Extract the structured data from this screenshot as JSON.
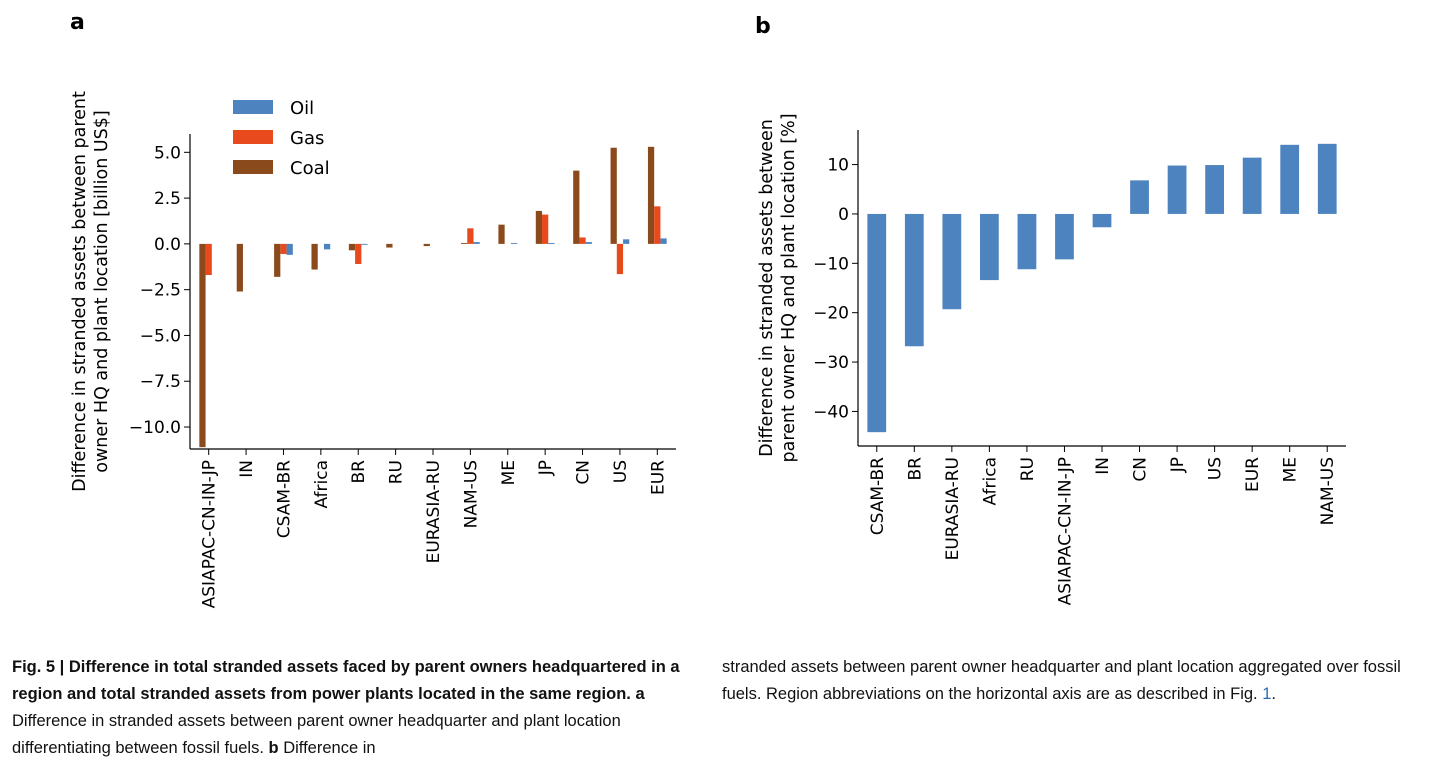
{
  "panels": {
    "a_letter": "a",
    "b_letter": "b"
  },
  "chart_data": [
    {
      "type": "bar",
      "panel": "a",
      "ylabel_line1": "Difference in stranded assets between parent",
      "ylabel_line2": "owner HQ and plant location [billion US$]",
      "ylim": [
        -11.2,
        6.0
      ],
      "yticks": [
        5.0,
        2.5,
        0.0,
        -2.5,
        -5.0,
        -7.5,
        -10.0
      ],
      "ytick_labels": [
        "5.0",
        "2.5",
        "0.0",
        "−2.5",
        "−5.0",
        "−7.5",
        "−10.0"
      ],
      "categories": [
        "ASIAPAC-CN-IN-JP",
        "IN",
        "CSAM-BR",
        "Africa",
        "BR",
        "RU",
        "EURASIA-RU",
        "NAM-US",
        "ME",
        "JP",
        "CN",
        "US",
        "EUR"
      ],
      "series": [
        {
          "name": "Coal",
          "color": "#8b4a1c",
          "values": [
            -11.1,
            -2.6,
            -1.8,
            -1.4,
            -0.35,
            -0.2,
            -0.12,
            0.05,
            1.05,
            1.8,
            4.0,
            5.25,
            5.3
          ]
        },
        {
          "name": "Gas",
          "color": "#e8491d",
          "values": [
            -1.7,
            0.0,
            -0.55,
            0.0,
            -1.1,
            0.0,
            0.0,
            0.85,
            0.0,
            1.6,
            0.35,
            -1.65,
            2.05
          ]
        },
        {
          "name": "Oil",
          "color": "#4d84c0",
          "values": [
            0.0,
            0.0,
            -0.6,
            -0.3,
            -0.05,
            0.0,
            0.0,
            0.1,
            0.05,
            0.05,
            0.1,
            0.25,
            0.3
          ]
        }
      ],
      "legend": [
        {
          "name": "Oil",
          "color": "#4d84c0"
        },
        {
          "name": "Gas",
          "color": "#e8491d"
        },
        {
          "name": "Coal",
          "color": "#8b4a1c"
        }
      ],
      "legend_placement": "top-left",
      "grid": false
    },
    {
      "type": "bar",
      "panel": "b",
      "ylabel_line1": "Difference in stranded assets between",
      "ylabel_line2": "parent owner HQ and plant location [%]",
      "ylim": [
        -47,
        17
      ],
      "yticks": [
        10,
        0,
        -10,
        -20,
        -30,
        -40
      ],
      "ytick_labels": [
        "10",
        "0",
        "−10",
        "−20",
        "−30",
        "−40"
      ],
      "categories": [
        "CSAM-BR",
        "BR",
        "EURASIA-RU",
        "Africa",
        "RU",
        "ASIAPAC-CN-IN-JP",
        "IN",
        "CN",
        "JP",
        "US",
        "EUR",
        "ME",
        "NAM-US"
      ],
      "values": [
        -44.2,
        -26.8,
        -19.3,
        -13.4,
        -11.2,
        -9.2,
        -2.7,
        6.8,
        9.8,
        9.9,
        11.4,
        14.0,
        14.2
      ],
      "color": "#4d84c0",
      "grid": false
    }
  ],
  "caption": {
    "left_bold": "Fig. 5 | Difference in total stranded assets faced by parent owners head­quartered in a region and total stranded assets from power plants located in the same region.",
    "left_a": "a",
    "left_a_text": "Difference in stranded assets between parent owner head­quarter and plant location differentiating between fossil fuels.",
    "left_b": "b",
    "left_b_text": "Difference in",
    "right_text": "stranded assets between parent owner headquarter and plant location aggregated over fossil fuels. Region abbreviations on the horizontal axis are as described in Fig.",
    "right_ref": "1",
    "right_end": "."
  }
}
